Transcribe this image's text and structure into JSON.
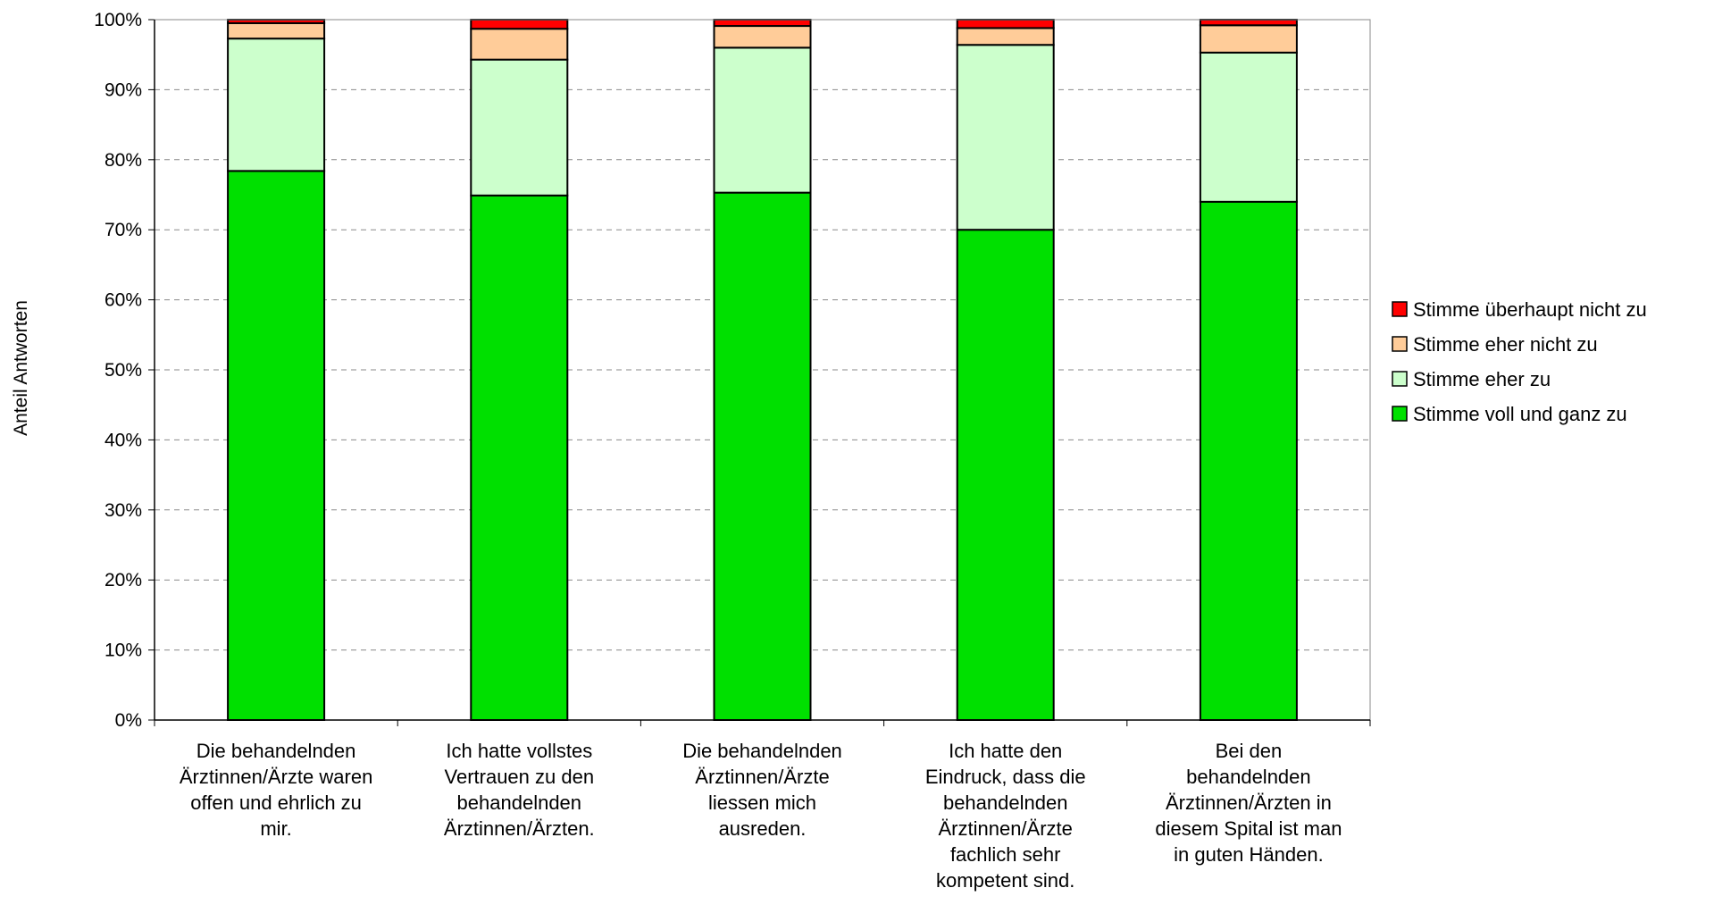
{
  "chart_data": {
    "type": "bar",
    "stacked": true,
    "ylabel": "Anteil Antworten",
    "ylim": [
      0,
      100
    ],
    "yticks": [
      "0%",
      "10%",
      "20%",
      "30%",
      "40%",
      "50%",
      "60%",
      "70%",
      "80%",
      "90%",
      "100%"
    ],
    "grid": true,
    "legend_position": "right",
    "categories": [
      [
        "Die behandelnden",
        "Ärztinnen/Ärzte waren",
        "offen und ehrlich zu",
        "mir."
      ],
      [
        "Ich hatte vollstes",
        "Vertrauen zu den",
        "behandelnden",
        "Ärztinnen/Ärzten."
      ],
      [
        "Die behandelnden",
        "Ärztinnen/Ärzte",
        "liessen mich",
        "ausreden."
      ],
      [
        "Ich hatte den",
        "Eindruck, dass die",
        "behandelnden",
        "Ärztinnen/Ärzte",
        "fachlich sehr",
        "kompetent sind."
      ],
      [
        "Bei den",
        "behandelnden",
        "Ärztinnen/Ärzten in",
        "diesem Spital ist man",
        "in guten Händen."
      ]
    ],
    "series": [
      {
        "name": "Stimme voll und ganz zu",
        "color": "#00e000",
        "values": [
          78.4,
          74.9,
          75.3,
          70.0,
          74.0
        ]
      },
      {
        "name": "Stimme eher zu",
        "color": "#ccffcc",
        "values": [
          18.9,
          19.4,
          20.7,
          26.4,
          21.3
        ]
      },
      {
        "name": "Stimme eher nicht zu",
        "color": "#ffcc99",
        "values": [
          2.2,
          4.4,
          3.1,
          2.4,
          3.9
        ]
      },
      {
        "name": "Stimme überhaupt nicht zu",
        "color": "#ff0000",
        "values": [
          0.5,
          1.3,
          0.9,
          1.2,
          0.8
        ]
      }
    ],
    "legend_order": [
      3,
      2,
      1,
      0
    ]
  }
}
